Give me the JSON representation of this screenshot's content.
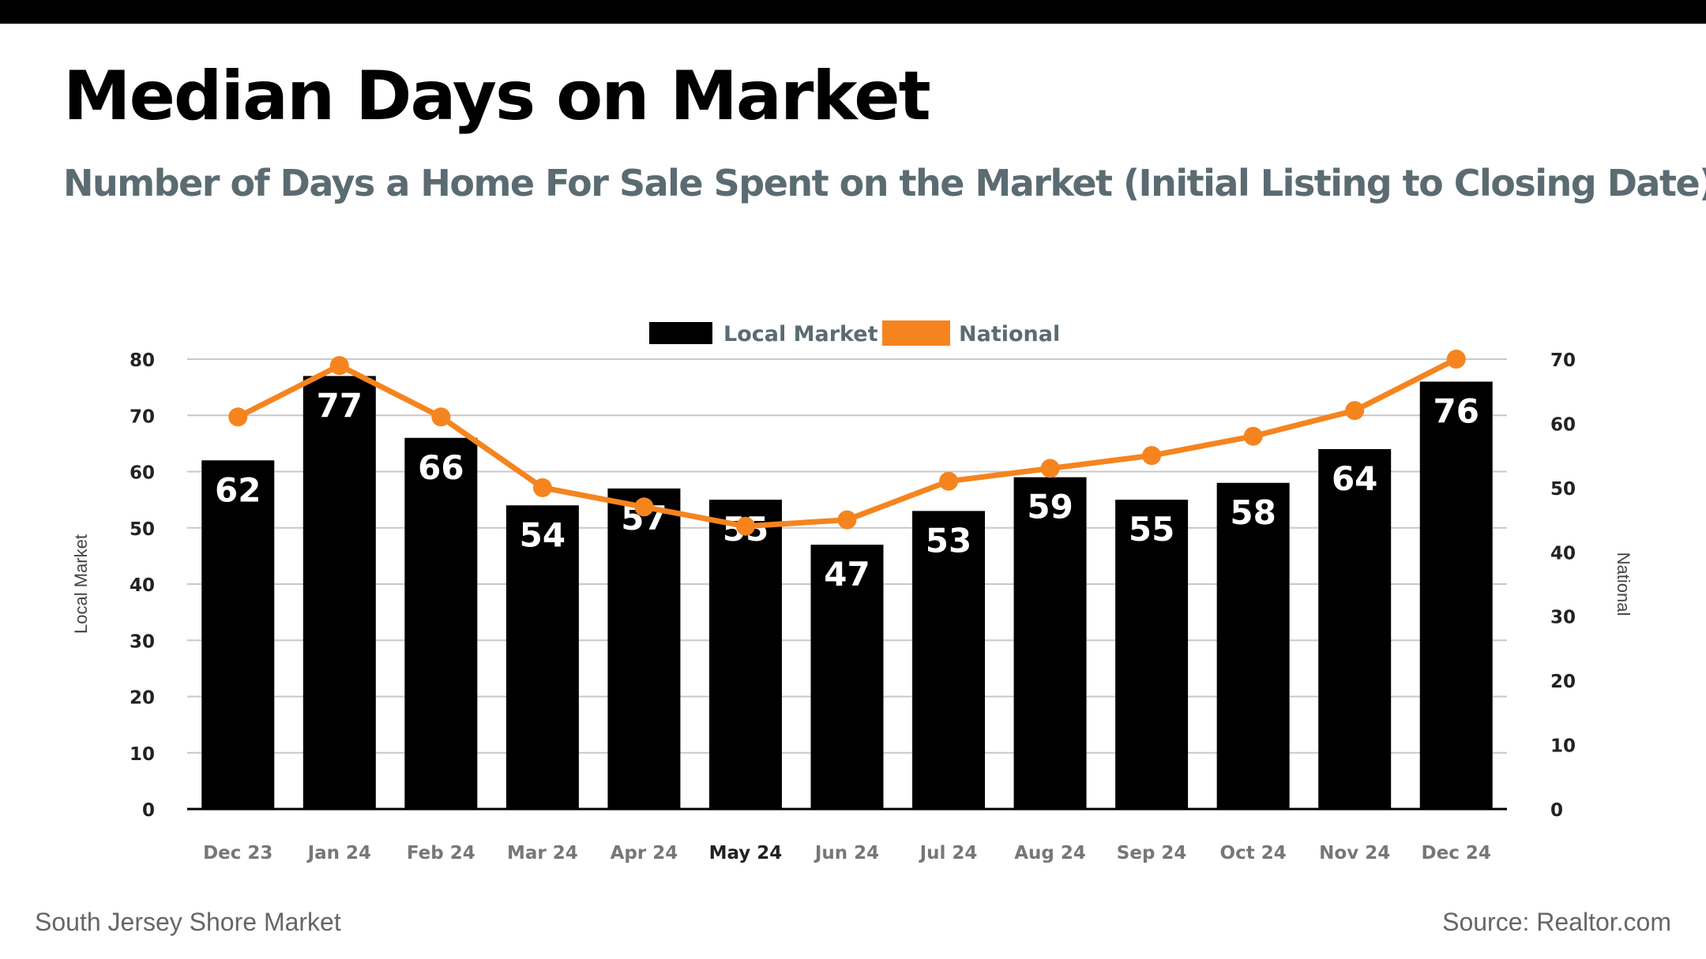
{
  "title": "Median Days on Market",
  "subtitle": "Number of Days a Home For Sale Spent on the Market (Initial Listing to Closing Date)",
  "footer_left": "South Jersey Shore Market",
  "footer_right": "Source: Realtor.com",
  "colors": {
    "local": "#000000",
    "national": "#f5841f",
    "subtitle": "#5b6b72",
    "grid": "#c8c8c8"
  },
  "chart_data": {
    "type": "bar",
    "categories": [
      "Dec 23",
      "Jan 24",
      "Feb 24",
      "Mar 24",
      "Apr 24",
      "May 24",
      "Jun 24",
      "Jul 24",
      "Aug 24",
      "Sep 24",
      "Oct 24",
      "Nov 24",
      "Dec 24"
    ],
    "series": [
      {
        "name": "Local Market",
        "type": "bar",
        "axis": "left",
        "values": [
          62,
          77,
          66,
          54,
          57,
          55,
          47,
          53,
          59,
          55,
          58,
          64,
          76
        ]
      },
      {
        "name": "National",
        "type": "line",
        "axis": "right",
        "values": [
          61,
          69,
          61,
          50,
          47,
          44,
          45,
          51,
          53,
          55,
          58,
          62,
          70
        ]
      }
    ],
    "ylabel": "Local Market",
    "ylabel_right": "National",
    "ylim": [
      0,
      80
    ],
    "ylim_right": [
      0,
      70
    ],
    "yticks": [
      0,
      10,
      20,
      30,
      40,
      50,
      60,
      70,
      80
    ],
    "yticks_right": [
      0,
      10,
      20,
      30,
      40,
      50,
      60,
      70
    ],
    "grid": true,
    "legend_position": "top-center",
    "highlighted_category": "May 24"
  }
}
